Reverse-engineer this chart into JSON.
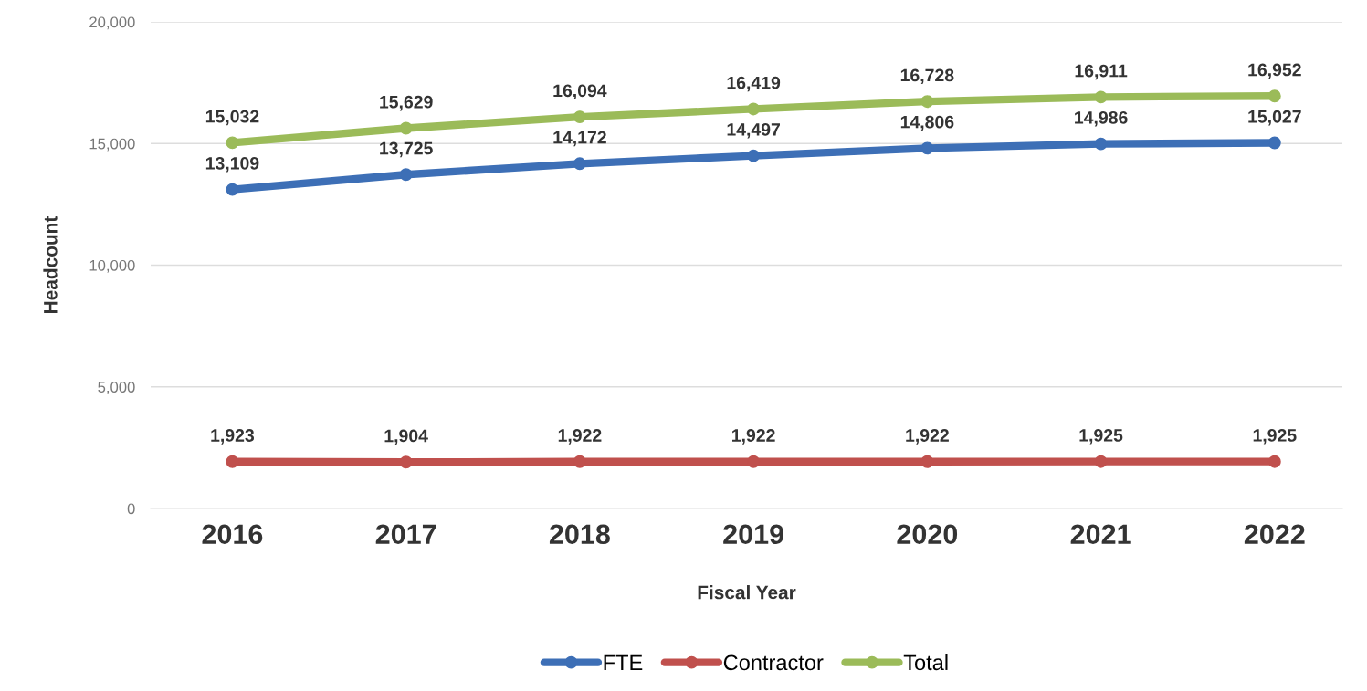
{
  "chart_data": {
    "type": "line",
    "xlabel": "Fiscal Year",
    "ylabel": "Headcount",
    "categories": [
      "2016",
      "2017",
      "2018",
      "2019",
      "2020",
      "2021",
      "2022"
    ],
    "series": [
      {
        "name": "FTE",
        "color": "#3d6fb6",
        "values": [
          13109,
          13725,
          14172,
          14497,
          14806,
          14986,
          15027
        ],
        "value_labels": [
          "13,109",
          "13,725",
          "14,172",
          "14,497",
          "14,806",
          "14,986",
          "15,027"
        ]
      },
      {
        "name": "Contractor",
        "color": "#c0504d",
        "values": [
          1923,
          1904,
          1922,
          1922,
          1922,
          1925,
          1925
        ],
        "value_labels": [
          "1,923",
          "1,904",
          "1,922",
          "1,922",
          "1,922",
          "1,925",
          "1,925"
        ]
      },
      {
        "name": "Total",
        "color": "#9bbb59",
        "values": [
          15032,
          15629,
          16094,
          16419,
          16728,
          16911,
          16952
        ],
        "value_labels": [
          "15,032",
          "15,629",
          "16,094",
          "16,419",
          "16,728",
          "16,911",
          "16,952"
        ]
      }
    ],
    "ylim": [
      0,
      20000
    ],
    "yticks": [
      {
        "value": 0,
        "label": "0"
      },
      {
        "value": 5000,
        "label": "5,000"
      },
      {
        "value": 10000,
        "label": "10,000"
      },
      {
        "value": 15000,
        "label": "15,000"
      },
      {
        "value": 20000,
        "label": "20,000"
      }
    ],
    "grid": "y",
    "legend": "bottom",
    "marker": "circle",
    "line_style": "solid"
  }
}
